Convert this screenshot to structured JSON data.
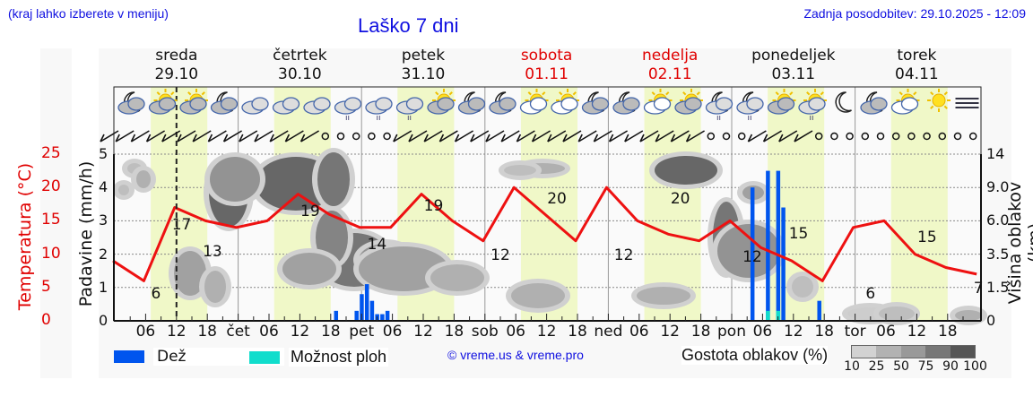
{
  "header": {
    "hint": "(kraj lahko izberete v meniju)",
    "title": "Laško 7 dni",
    "updated": "Zadnja posodobitev: 29.10.2025 - 12:09"
  },
  "days": [
    {
      "name": "sreda",
      "date": "29.10",
      "weekend": false
    },
    {
      "name": "četrtek",
      "date": "30.10",
      "weekend": false
    },
    {
      "name": "petek",
      "date": "31.10",
      "weekend": false
    },
    {
      "name": "sobota",
      "date": "01.11",
      "weekend": true
    },
    {
      "name": "nedelja",
      "date": "02.11",
      "weekend": true
    },
    {
      "name": "ponedeljek",
      "date": "03.11",
      "weekend": false
    },
    {
      "name": "torek",
      "date": "04.11",
      "weekend": false
    }
  ],
  "axes": {
    "temp_label": "Temperatura (°C)",
    "precip_label": "Padavine (mm/h)",
    "cloud_height_label": "Višina oblakov (km)",
    "temp_ticks": [
      "0",
      "5",
      "10",
      "15",
      "20",
      "25"
    ],
    "precip_ticks": [
      "0",
      "1",
      "2",
      "3",
      "4",
      "5"
    ],
    "cloud_height_ticks": [
      "0",
      "1.5",
      "3.5",
      "6.0",
      "9.0",
      "14"
    ],
    "x_ticks": [
      "06",
      "12",
      "18",
      "čet",
      "06",
      "12",
      "18",
      "pet",
      "06",
      "12",
      "18",
      "sob",
      "06",
      "12",
      "18",
      "ned",
      "06",
      "12",
      "18",
      "pon",
      "06",
      "12",
      "18",
      "tor",
      "06",
      "12",
      "18"
    ]
  },
  "legend": {
    "rain": "Dež",
    "showers": "Možnost ploh",
    "credit": "© vreme.us & vreme.pro",
    "cloud_density_label": "Gostota oblakov (%)",
    "cloud_density_steps": [
      "10",
      "25",
      "50",
      "75",
      "90",
      "100"
    ]
  },
  "colors": {
    "temperature": "#ee1111",
    "rain": "#0055ee",
    "showers": "#11ddcc",
    "daylight": "#f0f8c8",
    "title": "#1010e0",
    "weekend": "#e00000"
  },
  "weather_icons": [
    "moon-cloud",
    "sun-cloud",
    "sun-cloud",
    "moon-cloud",
    "cloudy",
    "cloudy",
    "cloudy",
    "cloud-light-rain",
    "cloud-light-rain",
    "cloud-light-rain",
    "sun-cloud",
    "moon-cloud",
    "moon-cloud",
    "sun-cloud-small",
    "sun-cloud-small",
    "moon-cloud",
    "moon-cloud",
    "sun-cloud-small",
    "sun-cloud",
    "moon-cloud-rain",
    "moon-cloud-rain",
    "sun-cloud",
    "sun-cloud-rain",
    "moon",
    "moon-cloud",
    "sun-cloud-small",
    "sun",
    "fog"
  ],
  "chart_data": {
    "type": "line",
    "title": "Laško 7 dni",
    "xlabel": "",
    "ylabel": "Temperatura (°C)",
    "ylim": [
      0,
      25
    ],
    "x_hours_from_start": [
      0,
      6,
      12,
      18,
      24,
      30,
      36,
      42,
      48,
      54,
      60,
      66,
      72,
      78,
      84,
      90,
      96,
      102,
      108,
      114,
      120,
      126,
      132,
      138,
      144,
      150,
      156,
      162,
      168
    ],
    "series": [
      {
        "name": "Temperatura (°C)",
        "values": [
          9,
          6,
          17,
          15,
          14,
          15,
          19,
          16,
          14,
          14,
          19,
          15,
          12,
          20,
          16,
          12,
          20,
          15,
          13,
          12,
          15,
          11,
          9,
          6,
          14,
          15,
          10,
          8,
          7
        ]
      },
      {
        "name": "Padavine dež (mm/h)",
        "points": [
          [
            43,
            0.3
          ],
          [
            47,
            0.3
          ],
          [
            48,
            0.8
          ],
          [
            49,
            1.1
          ],
          [
            50,
            0.6
          ],
          [
            51,
            0.2
          ],
          [
            52,
            0.2
          ],
          [
            53,
            0.3
          ],
          [
            124,
            4.0
          ],
          [
            127,
            4.5
          ],
          [
            129,
            4.5
          ],
          [
            130,
            3.4
          ],
          [
            137,
            0.6
          ]
        ]
      },
      {
        "name": "Možnost ploh",
        "points": [
          [
            127,
            0.3
          ],
          [
            129,
            0.3
          ]
        ]
      }
    ],
    "annotations": {
      "temp_labels": [
        {
          "t": "6",
          "hour": 8
        },
        {
          "t": "17",
          "hour": 13
        },
        {
          "t": "13",
          "hour": 19
        },
        {
          "t": "19",
          "hour": 38
        },
        {
          "t": "14",
          "hour": 51
        },
        {
          "t": "19",
          "hour": 62
        },
        {
          "t": "12",
          "hour": 75
        },
        {
          "t": "20",
          "hour": 86
        },
        {
          "t": "12",
          "hour": 99
        },
        {
          "t": "20",
          "hour": 110
        },
        {
          "t": "12",
          "hour": 124
        },
        {
          "t": "15",
          "hour": 133
        },
        {
          "t": "6",
          "hour": 147
        },
        {
          "t": "15",
          "hour": 158
        },
        {
          "t": "7",
          "hour": 168
        }
      ],
      "current_time_marker": "29.10 12:09"
    },
    "grid": true,
    "legend_position": "bottom"
  }
}
